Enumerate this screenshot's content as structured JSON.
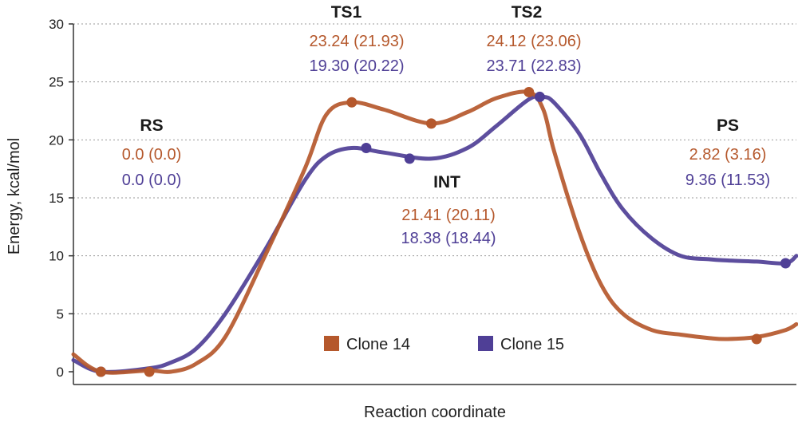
{
  "chart_data": {
    "type": "line",
    "xlabel": "Reaction coordinate",
    "ylabel": "Energy, kcal/mol",
    "ylim": [
      0,
      30
    ],
    "yticks": [
      "0",
      "5",
      "10",
      "15",
      "20",
      "25",
      "30"
    ],
    "grid": "horizontal dotted",
    "legend_position": "bottom-center",
    "x": [
      0,
      3.8,
      10.5,
      13.5,
      17.0,
      21.0,
      26.5,
      32.0,
      35.0,
      38.5,
      43.0,
      49.5,
      54.5,
      58.5,
      63.0,
      65.0,
      66.5,
      70.0,
      73.0,
      76.0,
      80.0,
      84.0,
      88.0,
      90.5,
      94.5,
      98.5,
      100
    ],
    "series": [
      {
        "name": "Clone 14",
        "color": "#b5582c",
        "values": [
          1.5,
          0.0,
          0.1,
          0.0,
          0.7,
          3.0,
          10.0,
          17.5,
          22.2,
          23.24,
          22.6,
          21.41,
          22.4,
          23.6,
          24.12,
          22.6,
          19.0,
          12.0,
          7.5,
          5.0,
          3.6,
          3.2,
          2.9,
          2.82,
          3.0,
          3.6,
          4.1
        ],
        "markers": [
          {
            "x": 3.8,
            "y": 0.0
          },
          {
            "x": 10.5,
            "y": 0.0
          },
          {
            "x": 38.5,
            "y": 23.24
          },
          {
            "x": 49.5,
            "y": 21.41
          },
          {
            "x": 63.0,
            "y": 24.12
          },
          {
            "x": 94.5,
            "y": 2.82
          }
        ]
      },
      {
        "name": "Clone 15",
        "color": "#4f3f96",
        "values": [
          1.0,
          0.0,
          0.3,
          0.8,
          2.0,
          5.0,
          10.5,
          16.5,
          18.6,
          19.3,
          18.9,
          18.38,
          19.3,
          21.2,
          23.5,
          23.71,
          23.2,
          20.5,
          17.0,
          14.0,
          11.5,
          10.0,
          9.7,
          9.6,
          9.5,
          9.36,
          10.0
        ],
        "markers": [
          {
            "x": 3.8,
            "y": 0.0
          },
          {
            "x": 40.5,
            "y": 19.3
          },
          {
            "x": 46.5,
            "y": 18.38
          },
          {
            "x": 64.5,
            "y": 23.71
          },
          {
            "x": 98.5,
            "y": 9.36
          }
        ]
      }
    ],
    "annotations": [
      {
        "label": "RS",
        "v1": "0.0 (0.0)",
        "v2": "0.0 (0.0)"
      },
      {
        "label": "TS1",
        "v1": "23.24 (21.93)",
        "v2": "19.30 (20.22)"
      },
      {
        "label": "INT",
        "v1": "21.41 (20.11)",
        "v2": "18.38 (18.44)"
      },
      {
        "label": "TS2",
        "v1": "24.12 (23.06)",
        "v2": "23.71 (22.83)"
      },
      {
        "label": "PS",
        "v1": "2.82 (3.16)",
        "v2": "9.36 (11.53)"
      }
    ]
  }
}
